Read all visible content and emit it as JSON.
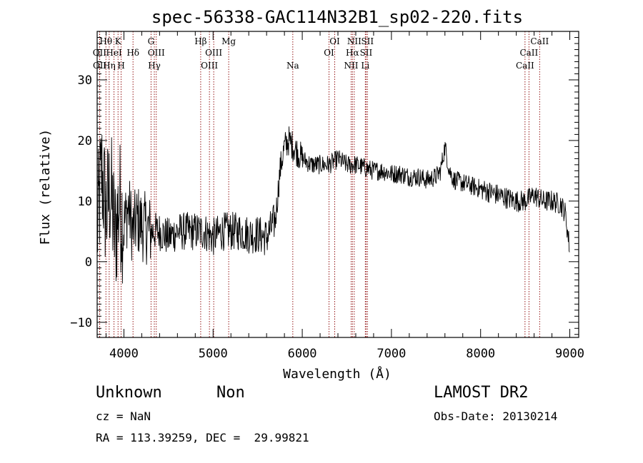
{
  "chart_data": {
    "type": "line",
    "title": "spec-56338-GAC114N32B1_sp02-220.fits",
    "xlabel": "Wavelength (Å)",
    "ylabel": "Flux (relative)",
    "xlim": [
      3700,
      9100
    ],
    "ylim": [
      -12.5,
      38
    ],
    "x_ticks": [
      4000,
      5000,
      6000,
      7000,
      8000,
      9000
    ],
    "x_tick_labels": [
      "4000",
      "5000",
      "6000",
      "7000",
      "8000",
      "9000"
    ],
    "y_ticks": [
      -10,
      0,
      10,
      20,
      30
    ],
    "y_tick_labels": [
      "−10",
      "0",
      "10",
      "20",
      "30"
    ],
    "grid": false,
    "series": [
      {
        "line_color": "#000000",
        "x": [
          3700,
          3750,
          3800,
          3850,
          3900,
          3950,
          4000,
          4050,
          4100,
          4150,
          4200,
          4300,
          4400,
          4500,
          4600,
          4700,
          4800,
          4900,
          5000,
          5100,
          5200,
          5300,
          5400,
          5500,
          5600,
          5700,
          5750,
          5800,
          5850,
          5900,
          5950,
          6000,
          6100,
          6200,
          6300,
          6400,
          6500,
          6600,
          6700,
          6800,
          6900,
          7000,
          7100,
          7200,
          7300,
          7400,
          7500,
          7550,
          7600,
          7650,
          7700,
          7800,
          7900,
          8000,
          8100,
          8200,
          8300,
          8400,
          8500,
          8600,
          8700,
          8800,
          8900,
          8950,
          9000
        ],
        "y": [
          5,
          15,
          8,
          12,
          4,
          10,
          6,
          9,
          5,
          7,
          6,
          5,
          5,
          4,
          5,
          5,
          5,
          5,
          4,
          5,
          5,
          5,
          4.5,
          4.5,
          4,
          7,
          15,
          19,
          20,
          19,
          18,
          17,
          16,
          16,
          16,
          17,
          16,
          16,
          15.5,
          15,
          15,
          14.5,
          14.5,
          14,
          14,
          13.5,
          14,
          15,
          19,
          15,
          13.5,
          13,
          12.5,
          12,
          11.5,
          11,
          10.5,
          10,
          10,
          11,
          10,
          10,
          9.5,
          8,
          2
        ]
      }
    ],
    "emission_lines": [
      {
        "label": "OII",
        "wavelength": 3727,
        "row": 2
      },
      {
        "label": "OII",
        "wavelength": 3729,
        "row": 3
      },
      {
        "label": "Hθ",
        "wavelength": 3798,
        "row": 1
      },
      {
        "label": "Hη",
        "wavelength": 3835,
        "row": 3
      },
      {
        "label": "HeI",
        "wavelength": 3889,
        "row": 2
      },
      {
        "label": "K",
        "wavelength": 3934,
        "row": 1
      },
      {
        "label": "H",
        "wavelength": 3969,
        "row": 3
      },
      {
        "label": "Hδ",
        "wavelength": 4102,
        "row": 2
      },
      {
        "label": "G",
        "wavelength": 4304,
        "row": 1
      },
      {
        "label": "Hγ",
        "wavelength": 4341,
        "row": 3
      },
      {
        "label": "OIII",
        "wavelength": 4363,
        "row": 2
      },
      {
        "label": "Hβ",
        "wavelength": 4861,
        "row": 1
      },
      {
        "label": "OIII",
        "wavelength": 4959,
        "row": 3
      },
      {
        "label": "OIII",
        "wavelength": 5007,
        "row": 2
      },
      {
        "label": "Mg",
        "wavelength": 5175,
        "row": 1
      },
      {
        "label": "Na",
        "wavelength": 5894,
        "row": 3
      },
      {
        "label": "OI",
        "wavelength": 6300,
        "row": 2
      },
      {
        "label": "OI",
        "wavelength": 6364,
        "row": 1
      },
      {
        "label": "NII",
        "wavelength": 6548,
        "row": 3
      },
      {
        "label": "Hα",
        "wavelength": 6563,
        "row": 2
      },
      {
        "label": "NII",
        "wavelength": 6583,
        "row": 1
      },
      {
        "label": "Li",
        "wavelength": 6707,
        "row": 3
      },
      {
        "label": "SII",
        "wavelength": 6716,
        "row": 2
      },
      {
        "label": "SII",
        "wavelength": 6731,
        "row": 1
      },
      {
        "label": "CaII",
        "wavelength": 8498,
        "row": 3
      },
      {
        "label": "CaII",
        "wavelength": 8542,
        "row": 2
      },
      {
        "label": "CaII",
        "wavelength": 8662,
        "row": 1
      }
    ],
    "marker_color": "#8b0000"
  },
  "caption": {
    "class_text": "Unknown",
    "subclass_text": "Non",
    "survey_text": "LAMOST DR2",
    "cz_text": "cz = NaN",
    "obs_date_text": "Obs-Date: 20130214",
    "radec_text": "RA = 113.39259, DEC =  29.99821"
  }
}
